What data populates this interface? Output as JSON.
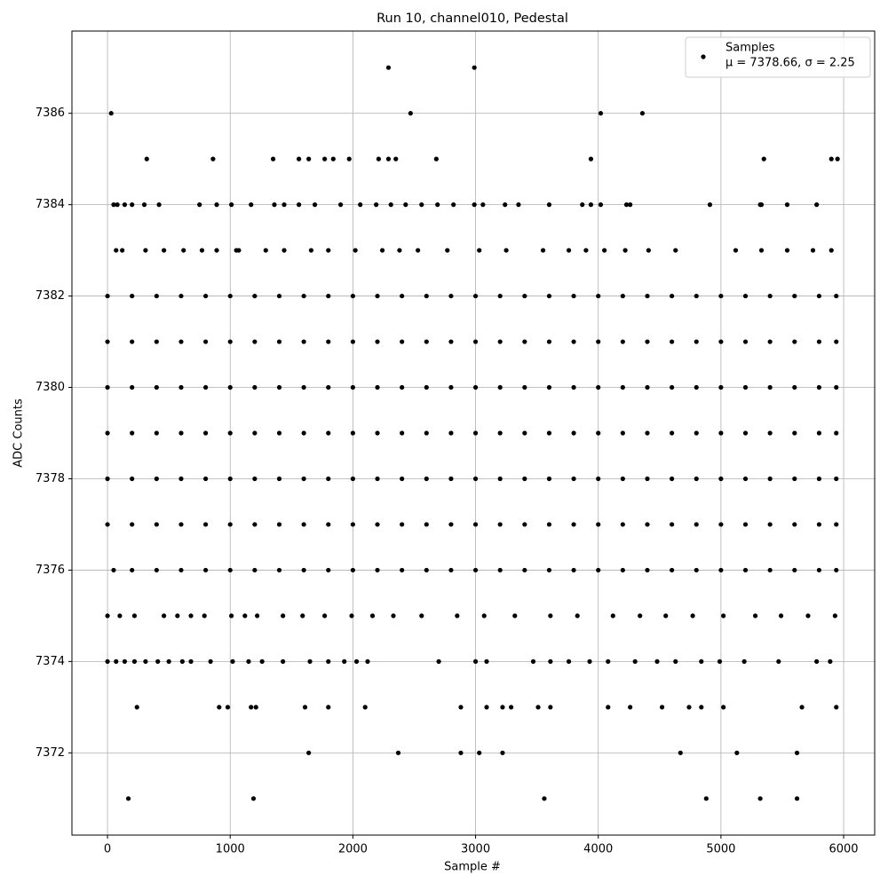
{
  "chart_data": {
    "type": "scatter",
    "title": "Run 10, channel010, Pedestal",
    "xlabel": "Sample #",
    "ylabel": "ADC Counts",
    "legend_note": "μ = 7378.66, σ = 2.25",
    "legend_position": "upper right",
    "grid": true,
    "xlim": [
      -290,
      6253
    ],
    "ylim": [
      7370.2,
      7387.8
    ],
    "xticks": [
      0,
      1000,
      2000,
      3000,
      4000,
      5000,
      6000
    ],
    "yticks": [
      7372,
      7374,
      7376,
      7378,
      7380,
      7382,
      7384,
      7386
    ],
    "series": [
      {
        "name": "Samples",
        "color": "#000000",
        "x": [
          2290,
          2990,
          30,
          2470,
          4020,
          4360,
          320,
          860,
          1350,
          1560,
          1640,
          1770,
          1840,
          1970,
          2210,
          2290,
          2350,
          2680,
          3940,
          5350,
          5900,
          5950,
          50,
          80,
          140,
          200,
          300,
          420,
          750,
          890,
          1010,
          1170,
          1360,
          1440,
          1560,
          1690,
          1900,
          2060,
          2190,
          2310,
          2430,
          2560,
          2690,
          2820,
          2990,
          3060,
          3240,
          3350,
          3600,
          3870,
          3940,
          4020,
          4230,
          4260,
          4910,
          5320,
          5330,
          5540,
          5780,
          70,
          120,
          310,
          460,
          620,
          770,
          890,
          1050,
          1070,
          1290,
          1440,
          1660,
          1800,
          2020,
          2240,
          2380,
          2530,
          2770,
          3030,
          3250,
          3550,
          3760,
          3900,
          4050,
          4220,
          4410,
          4630,
          5120,
          5330,
          5540,
          5750,
          5900,
          0,
          200,
          400,
          600,
          800,
          1000,
          1200,
          1400,
          1600,
          1800,
          2000,
          2200,
          2400,
          2600,
          2800,
          3000,
          3200,
          3400,
          3600,
          3800,
          4000,
          4200,
          4400,
          4600,
          4800,
          5000,
          5200,
          5400,
          5600,
          5800,
          5940,
          0,
          200,
          400,
          600,
          800,
          1000,
          1200,
          1400,
          1600,
          1800,
          2000,
          2200,
          2400,
          2600,
          2800,
          3000,
          3200,
          3400,
          3600,
          3800,
          4000,
          4200,
          4400,
          4600,
          4800,
          5000,
          5200,
          5400,
          5600,
          5800,
          5940,
          0,
          200,
          400,
          600,
          800,
          1000,
          1200,
          1400,
          1600,
          1800,
          2000,
          2200,
          2400,
          2600,
          2800,
          3000,
          3200,
          3400,
          3600,
          3800,
          4000,
          4200,
          4400,
          4600,
          4800,
          5000,
          5200,
          5400,
          5600,
          5800,
          5940,
          0,
          200,
          400,
          600,
          800,
          1000,
          1200,
          1400,
          1600,
          1800,
          2000,
          2200,
          2400,
          2600,
          2800,
          3000,
          3200,
          3400,
          3600,
          3800,
          4000,
          4200,
          4400,
          4600,
          4800,
          5000,
          5200,
          5400,
          5600,
          5800,
          5940,
          0,
          200,
          400,
          600,
          800,
          1000,
          1200,
          1400,
          1600,
          1800,
          2000,
          2200,
          2400,
          2600,
          2800,
          3000,
          3200,
          3400,
          3600,
          3800,
          4000,
          4200,
          4400,
          4600,
          4800,
          5000,
          5200,
          5400,
          5600,
          5800,
          5940,
          0,
          200,
          400,
          600,
          800,
          1000,
          1200,
          1400,
          1600,
          1800,
          2000,
          2200,
          2400,
          2600,
          2800,
          3000,
          3200,
          3400,
          3600,
          3800,
          4000,
          4200,
          4400,
          4600,
          4800,
          5000,
          5200,
          5400,
          5600,
          5800,
          5940,
          50,
          200,
          400,
          600,
          800,
          1000,
          1200,
          1400,
          1600,
          1800,
          2000,
          2200,
          2400,
          2600,
          2800,
          3000,
          3200,
          3400,
          3600,
          3800,
          4000,
          4200,
          4400,
          4600,
          4800,
          5000,
          5200,
          5400,
          5600,
          5800,
          5940,
          0,
          100,
          220,
          460,
          570,
          680,
          790,
          1010,
          1120,
          1220,
          1430,
          1590,
          1770,
          1990,
          2160,
          2330,
          2560,
          2850,
          3070,
          3320,
          3610,
          3830,
          4120,
          4340,
          4550,
          4770,
          5020,
          5280,
          5490,
          5710,
          5930,
          0,
          70,
          140,
          220,
          310,
          410,
          500,
          610,
          680,
          840,
          1020,
          1150,
          1260,
          1430,
          1650,
          1800,
          1930,
          2030,
          2120,
          2700,
          3000,
          3090,
          3470,
          3610,
          3760,
          3930,
          4080,
          4300,
          4480,
          4630,
          4840,
          4990,
          5190,
          5470,
          5780,
          5890,
          240,
          910,
          980,
          1170,
          1210,
          1610,
          1800,
          2100,
          2880,
          3090,
          3220,
          3290,
          3510,
          3610,
          4080,
          4260,
          4520,
          4740,
          4840,
          5020,
          5660,
          5940,
          1640,
          2370,
          2880,
          3030,
          3220,
          4670,
          5130,
          5620,
          170,
          1190,
          3560,
          4880,
          5320,
          5620
        ],
        "values": [
          7387,
          7387,
          7386,
          7386,
          7386,
          7386,
          7385,
          7385,
          7385,
          7385,
          7385,
          7385,
          7385,
          7385,
          7385,
          7385,
          7385,
          7385,
          7385,
          7385,
          7385,
          7385,
          7384,
          7384,
          7384,
          7384,
          7384,
          7384,
          7384,
          7384,
          7384,
          7384,
          7384,
          7384,
          7384,
          7384,
          7384,
          7384,
          7384,
          7384,
          7384,
          7384,
          7384,
          7384,
          7384,
          7384,
          7384,
          7384,
          7384,
          7384,
          7384,
          7384,
          7384,
          7384,
          7384,
          7384,
          7384,
          7384,
          7384,
          7383,
          7383,
          7383,
          7383,
          7383,
          7383,
          7383,
          7383,
          7383,
          7383,
          7383,
          7383,
          7383,
          7383,
          7383,
          7383,
          7383,
          7383,
          7383,
          7383,
          7383,
          7383,
          7383,
          7383,
          7383,
          7383,
          7383,
          7383,
          7383,
          7383,
          7383,
          7383,
          7382,
          7382,
          7382,
          7382,
          7382,
          7382,
          7382,
          7382,
          7382,
          7382,
          7382,
          7382,
          7382,
          7382,
          7382,
          7382,
          7382,
          7382,
          7382,
          7382,
          7382,
          7382,
          7382,
          7382,
          7382,
          7382,
          7382,
          7382,
          7382,
          7382,
          7382,
          7381,
          7381,
          7381,
          7381,
          7381,
          7381,
          7381,
          7381,
          7381,
          7381,
          7381,
          7381,
          7381,
          7381,
          7381,
          7381,
          7381,
          7381,
          7381,
          7381,
          7381,
          7381,
          7381,
          7381,
          7381,
          7381,
          7381,
          7381,
          7381,
          7381,
          7381,
          7380,
          7380,
          7380,
          7380,
          7380,
          7380,
          7380,
          7380,
          7380,
          7380,
          7380,
          7380,
          7380,
          7380,
          7380,
          7380,
          7380,
          7380,
          7380,
          7380,
          7380,
          7380,
          7380,
          7380,
          7380,
          7380,
          7380,
          7380,
          7380,
          7380,
          7380,
          7379,
          7379,
          7379,
          7379,
          7379,
          7379,
          7379,
          7379,
          7379,
          7379,
          7379,
          7379,
          7379,
          7379,
          7379,
          7379,
          7379,
          7379,
          7379,
          7379,
          7379,
          7379,
          7379,
          7379,
          7379,
          7379,
          7379,
          7379,
          7379,
          7379,
          7379,
          7378,
          7378,
          7378,
          7378,
          7378,
          7378,
          7378,
          7378,
          7378,
          7378,
          7378,
          7378,
          7378,
          7378,
          7378,
          7378,
          7378,
          7378,
          7378,
          7378,
          7378,
          7378,
          7378,
          7378,
          7378,
          7378,
          7378,
          7378,
          7378,
          7378,
          7378,
          7377,
          7377,
          7377,
          7377,
          7377,
          7377,
          7377,
          7377,
          7377,
          7377,
          7377,
          7377,
          7377,
          7377,
          7377,
          7377,
          7377,
          7377,
          7377,
          7377,
          7377,
          7377,
          7377,
          7377,
          7377,
          7377,
          7377,
          7377,
          7377,
          7377,
          7377,
          7376,
          7376,
          7376,
          7376,
          7376,
          7376,
          7376,
          7376,
          7376,
          7376,
          7376,
          7376,
          7376,
          7376,
          7376,
          7376,
          7376,
          7376,
          7376,
          7376,
          7376,
          7376,
          7376,
          7376,
          7376,
          7376,
          7376,
          7376,
          7376,
          7376,
          7376,
          7375,
          7375,
          7375,
          7375,
          7375,
          7375,
          7375,
          7375,
          7375,
          7375,
          7375,
          7375,
          7375,
          7375,
          7375,
          7375,
          7375,
          7375,
          7375,
          7375,
          7375,
          7375,
          7375,
          7375,
          7375,
          7375,
          7375,
          7375,
          7375,
          7375,
          7375,
          7374,
          7374,
          7374,
          7374,
          7374,
          7374,
          7374,
          7374,
          7374,
          7374,
          7374,
          7374,
          7374,
          7374,
          7374,
          7374,
          7374,
          7374,
          7374,
          7374,
          7374,
          7374,
          7374,
          7374,
          7374,
          7374,
          7374,
          7374,
          7374,
          7374,
          7374,
          7374,
          7374,
          7374,
          7374,
          7374,
          7373,
          7373,
          7373,
          7373,
          7373,
          7373,
          7373,
          7373,
          7373,
          7373,
          7373,
          7373,
          7373,
          7373,
          7373,
          7373,
          7373,
          7373,
          7373,
          7373,
          7373,
          7373,
          7372,
          7372,
          7372,
          7372,
          7372,
          7372,
          7372,
          7372,
          7371,
          7371,
          7371,
          7371,
          7371,
          7371
        ]
      }
    ]
  }
}
